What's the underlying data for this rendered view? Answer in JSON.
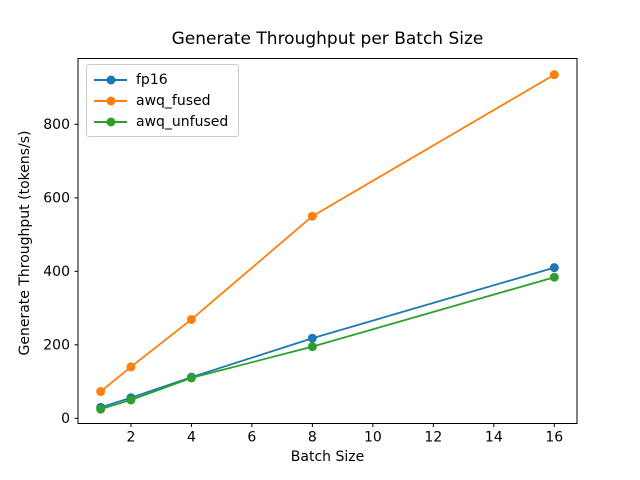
{
  "chart": {
    "title": "Generate Throughput per Batch Size",
    "xlabel": "Batch Size",
    "ylabel": "Generate Throughput (tokens/s)"
  },
  "chart_data": {
    "type": "line",
    "title": "Generate Throughput per Batch Size",
    "xlabel": "Batch Size",
    "ylabel": "Generate Throughput (tokens/s)",
    "x": [
      1,
      2,
      4,
      8,
      16
    ],
    "series": [
      {
        "name": "fp16",
        "color": "#1f77b4",
        "values": [
          30,
          56,
          112,
          218,
          410
        ]
      },
      {
        "name": "awq_fused",
        "color": "#ff7f0e",
        "values": [
          73,
          140,
          269,
          550,
          935
        ]
      },
      {
        "name": "awq_unfused",
        "color": "#2ca02c",
        "values": [
          25,
          50,
          110,
          195,
          384
        ]
      }
    ],
    "xticks": [
      2,
      4,
      6,
      8,
      10,
      12,
      14,
      16
    ],
    "yticks": [
      0,
      200,
      400,
      600,
      800
    ],
    "xlim": [
      0.25,
      16.75
    ],
    "ylim": [
      -14,
      979
    ],
    "grid": false,
    "legend_position": "upper left",
    "marker": "circle",
    "line_width": 1.8,
    "marker_radius": 4.5,
    "axis_color": "#000000",
    "background_color": "#ffffff",
    "legend_border_color": "#cccccc"
  }
}
